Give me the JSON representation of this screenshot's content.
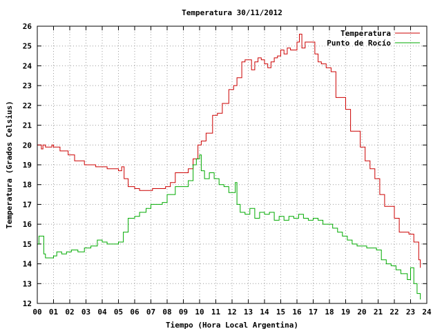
{
  "chart_data": {
    "type": "line",
    "title": "Temperatura 30/11/2012",
    "xlabel": "Tiempo (Hora Local Argentina)",
    "ylabel": "Temperatura (Grados Celsius)",
    "xlim": [
      0,
      24
    ],
    "ylim": [
      12,
      26
    ],
    "xticks": [
      "00",
      "01",
      "02",
      "03",
      "04",
      "05",
      "06",
      "07",
      "08",
      "09",
      "10",
      "11",
      "12",
      "13",
      "14",
      "15",
      "16",
      "17",
      "18",
      "19",
      "20",
      "21",
      "22",
      "23",
      "24"
    ],
    "yticks": [
      12,
      13,
      14,
      15,
      16,
      17,
      18,
      19,
      20,
      21,
      22,
      23,
      24,
      25,
      26
    ],
    "grid": true,
    "legend_position": "top-right",
    "series": [
      {
        "name": "Temperatura",
        "color": "#cc0000",
        "x": [
          0.0,
          0.25,
          0.35,
          0.5,
          0.9,
          1.0,
          1.4,
          1.9,
          2.3,
          2.9,
          3.6,
          4.3,
          5.0,
          5.1,
          5.2,
          5.35,
          5.6,
          6.0,
          6.3,
          6.7,
          7.1,
          7.5,
          7.9,
          8.2,
          8.5,
          8.9,
          9.3,
          9.6,
          9.9,
          10.1,
          10.4,
          10.8,
          11.1,
          11.4,
          11.8,
          12.1,
          12.3,
          12.6,
          12.8,
          13.0,
          13.2,
          13.4,
          13.6,
          13.8,
          14.0,
          14.2,
          14.4,
          14.6,
          14.8,
          15.0,
          15.2,
          15.4,
          15.6,
          15.8,
          16.0,
          16.15,
          16.3,
          16.5,
          16.8,
          17.1,
          17.3,
          17.5,
          17.8,
          18.1,
          18.4,
          18.7,
          19.0,
          19.3,
          19.6,
          19.9,
          20.2,
          20.5,
          20.8,
          21.1,
          21.4,
          21.7,
          22.0,
          22.3,
          22.6,
          22.9,
          23.2,
          23.5,
          23.6
        ],
        "y": [
          20.0,
          19.8,
          20.0,
          19.9,
          20.0,
          19.9,
          19.7,
          19.5,
          19.2,
          19.0,
          18.9,
          18.8,
          18.7,
          18.7,
          18.9,
          18.3,
          17.9,
          17.8,
          17.7,
          17.7,
          17.8,
          17.8,
          17.9,
          18.1,
          18.6,
          18.6,
          18.8,
          19.3,
          20.0,
          20.2,
          20.6,
          21.5,
          21.6,
          22.1,
          22.8,
          23.0,
          23.4,
          24.2,
          24.3,
          24.3,
          23.8,
          24.2,
          24.4,
          24.3,
          24.1,
          23.9,
          24.2,
          24.4,
          24.5,
          24.8,
          24.6,
          24.9,
          24.8,
          24.8,
          25.2,
          25.6,
          24.9,
          25.2,
          25.2,
          24.6,
          24.2,
          24.1,
          23.9,
          23.7,
          22.4,
          22.4,
          21.8,
          20.7,
          20.7,
          19.9,
          19.2,
          18.8,
          18.3,
          17.5,
          16.9,
          16.9,
          16.3,
          15.6,
          15.6,
          15.5,
          15.1,
          14.2,
          13.8
        ]
      },
      {
        "name": "Punto de Rocío",
        "color": "#00aa00",
        "x": [
          0.0,
          0.1,
          0.25,
          0.4,
          0.5,
          0.8,
          1.0,
          1.2,
          1.5,
          1.8,
          2.1,
          2.5,
          2.9,
          3.3,
          3.7,
          4.0,
          4.3,
          4.6,
          5.0,
          5.3,
          5.6,
          6.0,
          6.3,
          6.7,
          7.0,
          7.3,
          7.7,
          8.0,
          8.5,
          9.0,
          9.3,
          9.6,
          9.8,
          10.0,
          10.1,
          10.3,
          10.6,
          10.9,
          11.2,
          11.5,
          11.8,
          12.0,
          12.2,
          12.3,
          12.5,
          12.8,
          13.1,
          13.4,
          13.7,
          14.0,
          14.3,
          14.6,
          14.9,
          15.2,
          15.5,
          15.8,
          16.1,
          16.4,
          16.7,
          17.0,
          17.3,
          17.6,
          17.9,
          18.2,
          18.5,
          18.8,
          19.1,
          19.4,
          19.7,
          20.0,
          20.3,
          20.6,
          20.9,
          21.2,
          21.5,
          21.8,
          22.1,
          22.4,
          22.6,
          22.8,
          23.0,
          23.2,
          23.4,
          23.6
        ],
        "y": [
          15.0,
          15.4,
          15.4,
          14.5,
          14.3,
          14.3,
          14.4,
          14.6,
          14.5,
          14.6,
          14.7,
          14.6,
          14.8,
          14.9,
          15.2,
          15.1,
          15.0,
          15.0,
          15.1,
          15.6,
          16.3,
          16.4,
          16.6,
          16.8,
          17.0,
          17.0,
          17.1,
          17.5,
          17.9,
          17.9,
          18.2,
          19.0,
          19.3,
          19.5,
          18.7,
          18.3,
          18.6,
          18.3,
          18.0,
          17.9,
          17.6,
          17.6,
          18.1,
          17.0,
          16.6,
          16.5,
          16.8,
          16.3,
          16.6,
          16.5,
          16.6,
          16.2,
          16.4,
          16.2,
          16.4,
          16.3,
          16.5,
          16.3,
          16.2,
          16.3,
          16.2,
          16.0,
          16.0,
          15.8,
          15.6,
          15.4,
          15.2,
          15.0,
          14.9,
          14.9,
          14.8,
          14.8,
          14.7,
          14.2,
          14.0,
          13.9,
          13.7,
          13.5,
          13.5,
          13.2,
          13.8,
          13.0,
          12.5,
          12.2
        ]
      }
    ]
  }
}
